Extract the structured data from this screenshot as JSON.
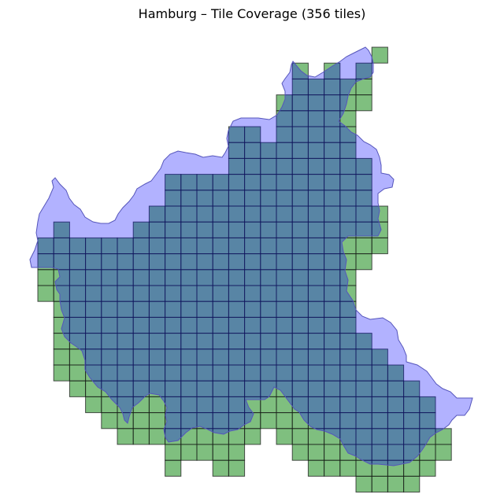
{
  "title": "Hamburg – Tile Coverage (356 tiles)",
  "colors": {
    "boundary_fill": "#0000ff",
    "boundary_fill_opacity": 0.3,
    "boundary_stroke": "#5555bb",
    "tile_fill": "#008000",
    "tile_fill_opacity": 0.5,
    "tile_stroke": "#1a1a1a"
  },
  "tile_count": 356
}
